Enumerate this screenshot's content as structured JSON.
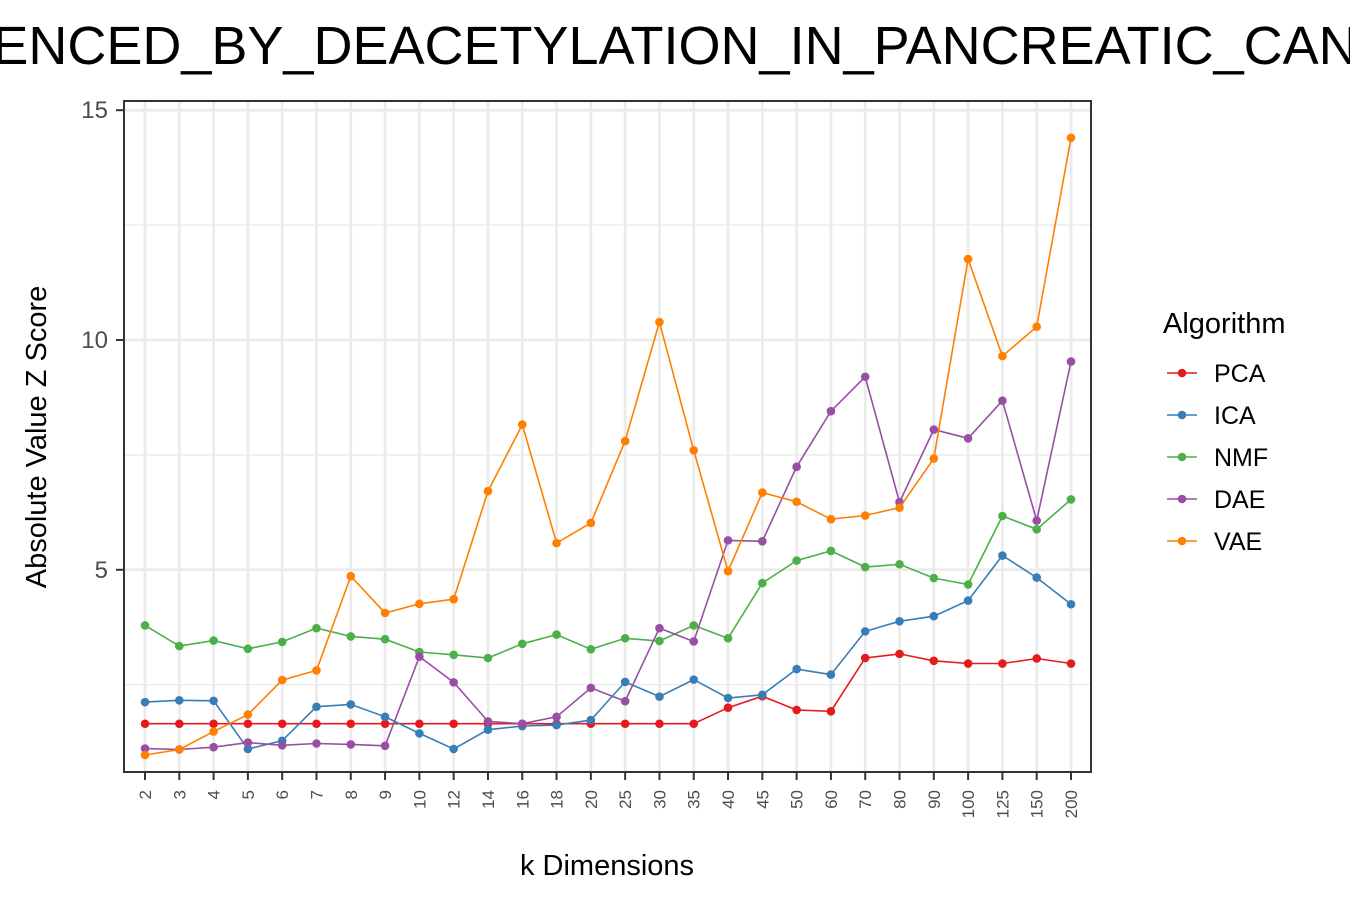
{
  "chart_data": {
    "type": "line",
    "title": "ENCED_BY_DEACETYLATION_IN_PANCREATIC_CAN",
    "xlabel": "k Dimensions",
    "ylabel": "Absolute Value Z Score",
    "categories": [
      "2",
      "3",
      "4",
      "5",
      "6",
      "7",
      "8",
      "9",
      "10",
      "12",
      "14",
      "16",
      "18",
      "20",
      "25",
      "30",
      "35",
      "40",
      "45",
      "50",
      "60",
      "70",
      "80",
      "90",
      "100",
      "125",
      "150",
      "200"
    ],
    "ylim": [
      0.6,
      15.2
    ],
    "yticks": [
      5,
      10,
      15
    ],
    "ytick_labels": [
      "5",
      "10",
      "15"
    ],
    "grid": true,
    "legend_title": "Algorithm",
    "legend_position": "right",
    "series": [
      {
        "name": "PCA",
        "color": "#e41a1c",
        "values": [
          1.65,
          1.65,
          1.65,
          1.65,
          1.65,
          1.65,
          1.65,
          1.65,
          1.65,
          1.65,
          1.65,
          1.65,
          1.65,
          1.65,
          1.65,
          1.65,
          1.65,
          2.0,
          2.25,
          1.95,
          1.92,
          3.08,
          3.17,
          3.02,
          2.96,
          2.96,
          3.07,
          2.96
        ]
      },
      {
        "name": "ICA",
        "color": "#377eb8",
        "values": [
          2.12,
          2.16,
          2.15,
          1.1,
          1.28,
          2.02,
          2.07,
          1.8,
          1.44,
          1.1,
          1.52,
          1.6,
          1.62,
          1.73,
          2.56,
          2.24,
          2.61,
          2.21,
          2.28,
          2.84,
          2.72,
          3.66,
          3.88,
          3.99,
          4.33,
          5.31,
          4.83,
          4.25
        ]
      },
      {
        "name": "NMF",
        "color": "#4daf4a",
        "values": [
          3.79,
          3.34,
          3.46,
          3.28,
          3.43,
          3.73,
          3.55,
          3.49,
          3.21,
          3.15,
          3.08,
          3.39,
          3.59,
          3.27,
          3.51,
          3.45,
          3.79,
          3.51,
          4.71,
          5.2,
          5.41,
          5.06,
          5.12,
          4.82,
          4.68,
          6.17,
          5.88,
          6.53
        ]
      },
      {
        "name": "DAE",
        "color": "#984ea3",
        "values": [
          1.11,
          1.09,
          1.14,
          1.24,
          1.18,
          1.22,
          1.2,
          1.17,
          3.11,
          2.55,
          1.7,
          1.65,
          1.8,
          2.43,
          2.14,
          3.73,
          3.44,
          5.64,
          5.62,
          7.24,
          8.45,
          9.2,
          6.47,
          8.05,
          7.86,
          8.68,
          6.07,
          9.53
        ]
      },
      {
        "name": "VAE",
        "color": "#ff7f00",
        "values": [
          0.97,
          1.09,
          1.48,
          1.85,
          2.6,
          2.81,
          4.86,
          4.06,
          4.26,
          4.36,
          6.71,
          8.16,
          5.58,
          6.02,
          7.8,
          10.39,
          7.6,
          4.97,
          6.68,
          6.48,
          6.1,
          6.18,
          6.35,
          7.42,
          11.76,
          9.65,
          10.29,
          14.4
        ]
      }
    ]
  }
}
